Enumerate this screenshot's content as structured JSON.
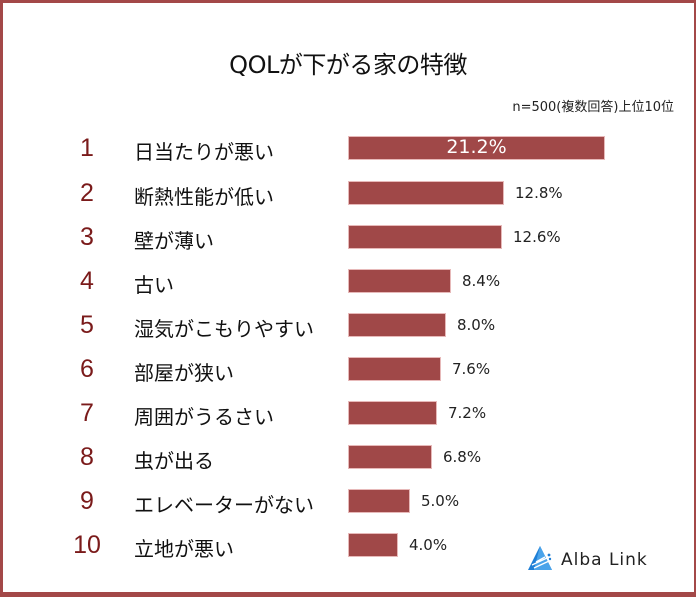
{
  "header": {
    "title": "QOLが下がる家の特徴",
    "subtitle": "n=500(複数回答)上位10位"
  },
  "colors": {
    "bar": "#a04848",
    "rank": "#7a1a1a",
    "frame": "#a34848",
    "logo": "#1e7fd6"
  },
  "items": [
    {
      "rank": "1",
      "label": "日当たりが悪い",
      "value": "21.2%"
    },
    {
      "rank": "2",
      "label": "断熱性能が低い",
      "value": "12.8%"
    },
    {
      "rank": "3",
      "label": "壁が薄い",
      "value": "12.6%"
    },
    {
      "rank": "4",
      "label": "古い",
      "value": "8.4%"
    },
    {
      "rank": "5",
      "label": "湿気がこもりやすい",
      "value": "8.0%"
    },
    {
      "rank": "6",
      "label": "部屋が狭い",
      "value": "7.6%"
    },
    {
      "rank": "7",
      "label": "周囲がうるさい",
      "value": "7.2%"
    },
    {
      "rank": "8",
      "label": "虫が出る",
      "value": "6.8%"
    },
    {
      "rank": "9",
      "label": "エレベーターがない",
      "value": "5.0%"
    },
    {
      "rank": "10",
      "label": "立地が悪い",
      "value": "4.0%"
    }
  ],
  "logo": {
    "text": "Alba Link",
    "icon": "alba-link-triangle-icon"
  },
  "chart_data": {
    "type": "bar",
    "orientation": "horizontal",
    "title": "QOLが下がる家の特徴",
    "subtitle": "n=500(複数回答)上位10位",
    "categories": [
      "日当たりが悪い",
      "断熱性能が低い",
      "壁が薄い",
      "古い",
      "湿気がこもりやすい",
      "部屋が狭い",
      "周囲がうるさい",
      "虫が出る",
      "エレベーターがない",
      "立地が悪い"
    ],
    "values": [
      21.2,
      12.8,
      12.6,
      8.4,
      8.0,
      7.6,
      7.2,
      6.8,
      5.0,
      4.0
    ],
    "unit": "%",
    "xlabel": "",
    "ylabel": "",
    "grid": false,
    "legend": null
  }
}
